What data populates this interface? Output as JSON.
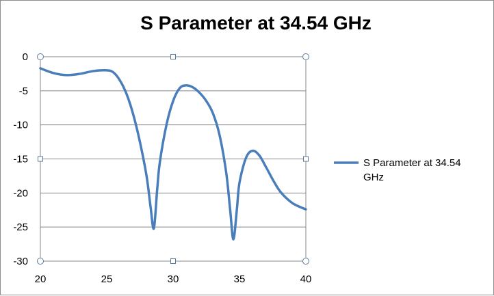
{
  "chart_data": {
    "type": "line",
    "title": "S Parameter at 34.54 GHz",
    "xlabel": "",
    "ylabel": "",
    "xlim": [
      20,
      40
    ],
    "ylim": [
      -30,
      0
    ],
    "x_ticks": [
      20,
      25,
      30,
      35,
      40
    ],
    "y_ticks": [
      0,
      -5,
      -10,
      -15,
      -20,
      -25,
      -30
    ],
    "grid": "horizontal",
    "legend_position": "right",
    "series_color": "#4a7ebb",
    "series": [
      {
        "name": "S Parameter at 34.54 GHz",
        "x": [
          20,
          21,
          22,
          23,
          24,
          25,
          25.5,
          26,
          26.5,
          27,
          27.5,
          28,
          28.3,
          28.55,
          28.8,
          29,
          29.5,
          30,
          30.5,
          31,
          31.5,
          32,
          32.5,
          33,
          33.5,
          34,
          34.3,
          34.54,
          34.8,
          35,
          35.5,
          36,
          36.5,
          37,
          37.5,
          38,
          38.5,
          39,
          39.5,
          40
        ],
        "values": [
          -1.7,
          -2.4,
          -2.7,
          -2.5,
          -2.1,
          -2.0,
          -2.3,
          -3.5,
          -5.5,
          -8.5,
          -12.5,
          -17.5,
          -22.0,
          -25.2,
          -19.5,
          -15.5,
          -10.0,
          -6.5,
          -4.6,
          -4.2,
          -4.5,
          -5.3,
          -6.5,
          -8.3,
          -11.5,
          -17.0,
          -22.5,
          -26.8,
          -22.5,
          -18.5,
          -14.8,
          -13.8,
          -14.5,
          -16.2,
          -18.0,
          -19.6,
          -20.7,
          -21.5,
          -22.0,
          -22.4
        ]
      }
    ]
  }
}
